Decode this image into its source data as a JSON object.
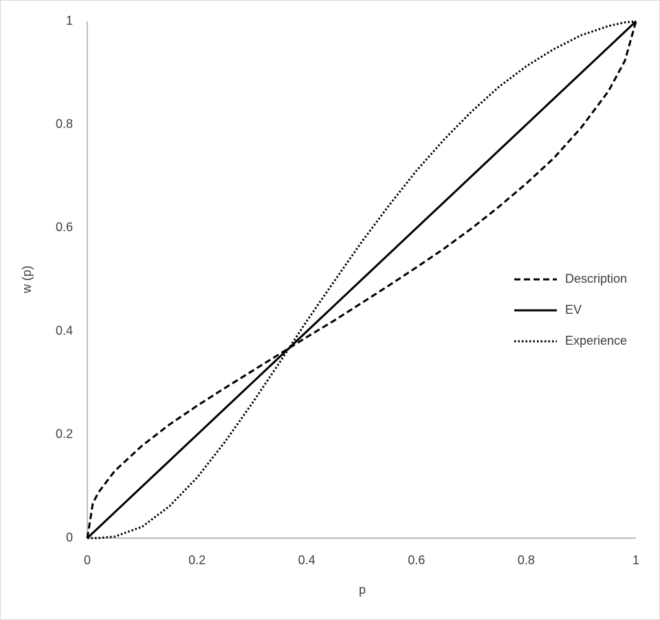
{
  "chart_data": {
    "type": "line",
    "x_label": "p",
    "y_label": "w (p)",
    "x": [
      0,
      0.01,
      0.02,
      0.05,
      0.1,
      0.15,
      0.2,
      0.25,
      0.3,
      0.35,
      0.4,
      0.45,
      0.5,
      0.55,
      0.6,
      0.65,
      0.7,
      0.75,
      0.8,
      0.85,
      0.9,
      0.95,
      0.98,
      1
    ],
    "series": [
      {
        "name": "Description",
        "color": "#000000",
        "style": "dashed",
        "values": [
          0,
          0.067,
          0.088,
          0.13,
          0.179,
          0.22,
          0.256,
          0.29,
          0.323,
          0.356,
          0.389,
          0.421,
          0.455,
          0.489,
          0.524,
          0.56,
          0.599,
          0.641,
          0.686,
          0.735,
          0.794,
          0.865,
          0.924,
          1
        ]
      },
      {
        "name": "EV",
        "color": "#000000",
        "style": "solid",
        "values": [
          0,
          0.01,
          0.02,
          0.05,
          0.1,
          0.15,
          0.2,
          0.25,
          0.3,
          0.35,
          0.4,
          0.45,
          0.5,
          0.55,
          0.6,
          0.65,
          0.7,
          0.75,
          0.8,
          0.85,
          0.9,
          0.95,
          0.98,
          1
        ]
      },
      {
        "name": "Experience",
        "color": "#000000",
        "style": "dotted",
        "values": [
          0,
          0,
          0.0001,
          0.003,
          0.022,
          0.062,
          0.117,
          0.185,
          0.26,
          0.339,
          0.42,
          0.497,
          0.573,
          0.644,
          0.711,
          0.771,
          0.825,
          0.873,
          0.913,
          0.946,
          0.973,
          0.991,
          0.998,
          1
        ]
      }
    ],
    "xlim": [
      0,
      1
    ],
    "ylim": [
      0,
      1
    ],
    "xticks": [
      0,
      0.2,
      0.4,
      0.6,
      0.8,
      1
    ],
    "yticks": [
      0,
      0.2,
      0.4,
      0.6,
      0.8,
      1
    ],
    "grid": false,
    "legend": "right"
  }
}
